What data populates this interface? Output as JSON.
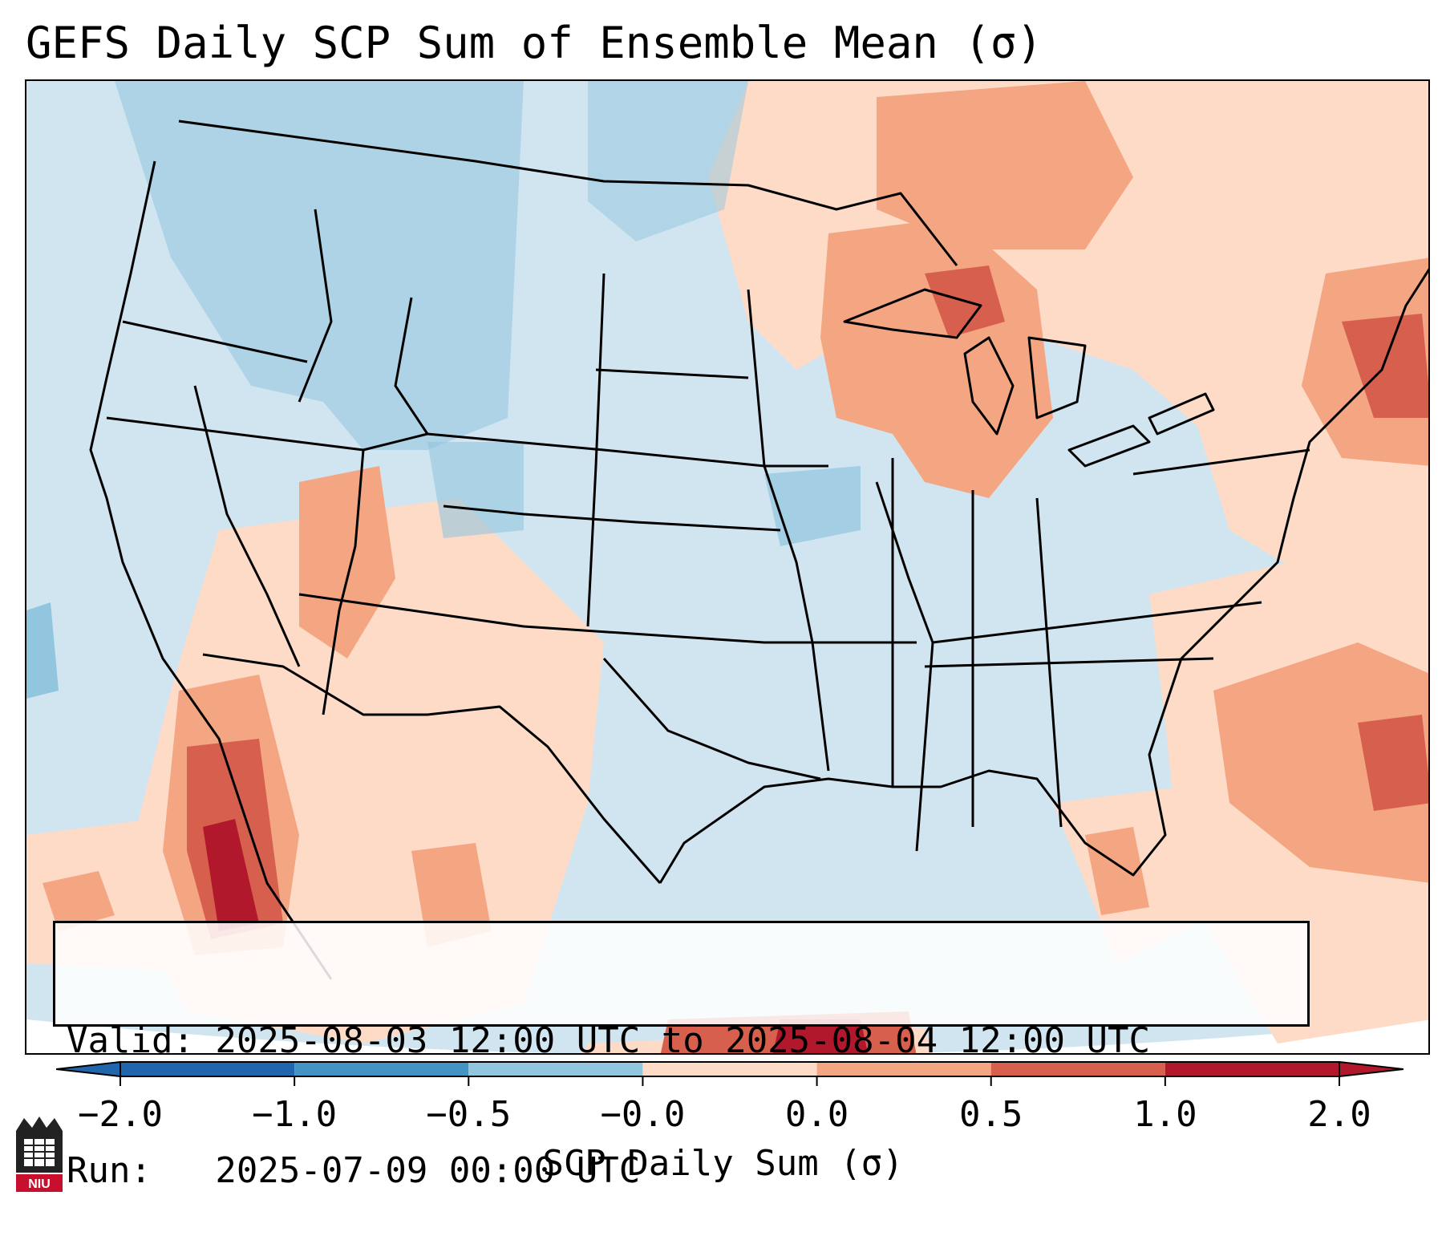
{
  "title": "GEFS Daily SCP Sum of Ensemble Mean (σ)",
  "map": {
    "projection": "Lambert Conformal – CONUS",
    "region_labels": [],
    "background_color": "#d1e5f0",
    "ocean_edge_color": "#ffffff",
    "anomaly_areas": [
      {
        "name": "upper-midwest-great-lakes",
        "category": "0.5 to 1.0",
        "color": "#f4a582"
      },
      {
        "name": "northeast-new-england",
        "category": "1.0 to 2.0",
        "color": "#d6604d"
      },
      {
        "name": "southwest-mexico",
        "category": "1.0 to 2.0",
        "color": "#d6604d"
      },
      {
        "name": "gulf-of-california",
        "category": "> 2.0",
        "color": "#b2182b"
      },
      {
        "name": "western-atlantic",
        "category": "0.5 to 1.0",
        "color": "#f4a582"
      },
      {
        "name": "northern-rockies",
        "category": "-1.0 to -0.5",
        "color": "#92c5de"
      }
    ]
  },
  "info": {
    "valid_line": "Valid: 2025-08-03 12:00 UTC to 2025-08-04 12:00 UTC",
    "run_line": "Run:   2025-07-09 00:00 UTC"
  },
  "colorbar": {
    "label": "SCP Daily Sum (σ)",
    "ticks": [
      "−2.0",
      "−1.0",
      "−0.5",
      "−0.0",
      "0.0",
      "0.5",
      "1.0",
      "2.0"
    ],
    "colors": [
      "#2166ac",
      "#4393c3",
      "#92c5de",
      "#d1e5f0",
      "#fddbc7",
      "#f4a582",
      "#d6604d",
      "#b2182b"
    ],
    "under_color": "#2166ac",
    "over_color": "#b2182b"
  },
  "logo": {
    "text": "NIU"
  }
}
